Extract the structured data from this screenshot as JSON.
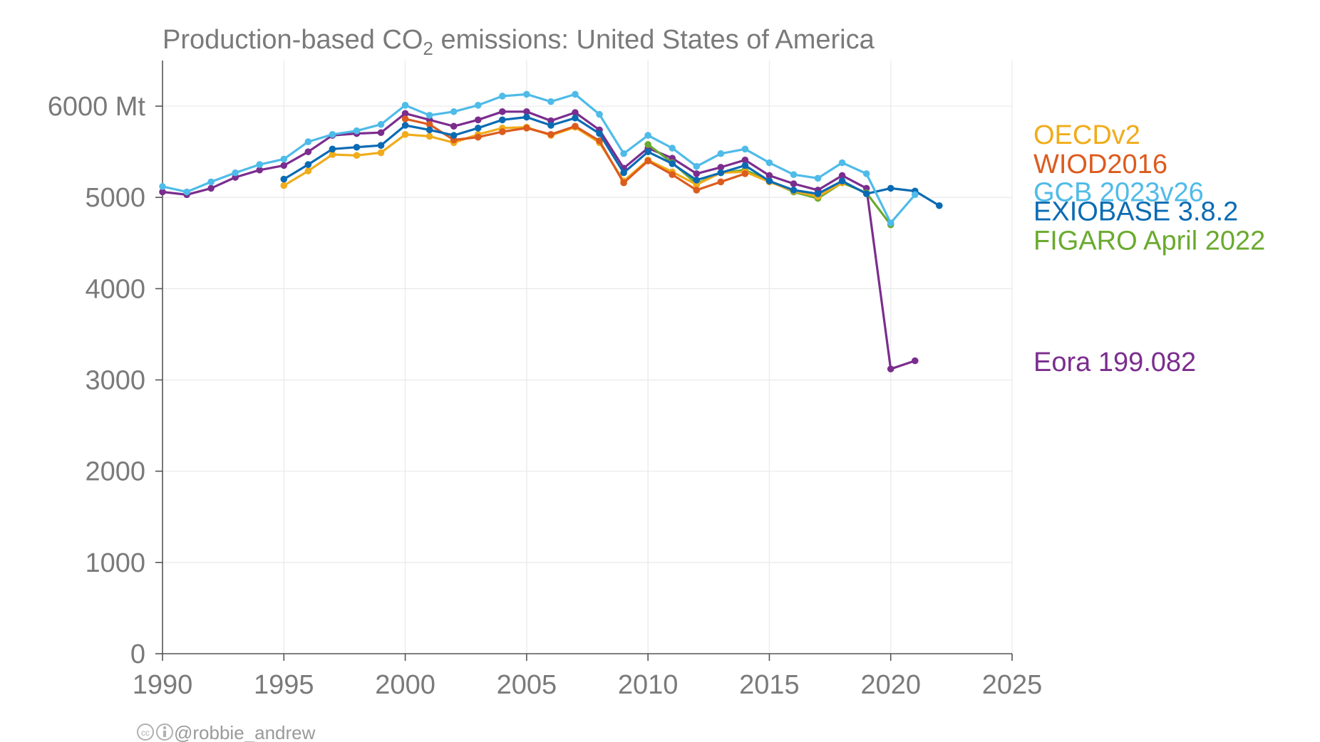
{
  "title": {
    "prefix": "Production-based CO",
    "subscript": "2",
    "suffix": " emissions: United States of America"
  },
  "credit": "@robbie_andrew",
  "chart_data": {
    "type": "line",
    "xlim": [
      1990,
      2025
    ],
    "ylim": [
      0,
      6500
    ],
    "x_ticks": [
      1990,
      1995,
      2000,
      2005,
      2010,
      2015,
      2020,
      2025
    ],
    "y_ticks": [
      {
        "value": 0,
        "label": "0"
      },
      {
        "value": 1000,
        "label": "1000"
      },
      {
        "value": 2000,
        "label": "2000"
      },
      {
        "value": 3000,
        "label": "3000"
      },
      {
        "value": 4000,
        "label": "4000"
      },
      {
        "value": 5000,
        "label": "5000"
      },
      {
        "value": 6000,
        "label": "6000 Mt"
      }
    ],
    "grid": true,
    "legend_position": "right",
    "series": [
      {
        "name": "Eora 199.082",
        "color": "#7b2d8e",
        "legend_value": 3200,
        "x": [
          1990,
          1991,
          1992,
          1993,
          1994,
          1995,
          1996,
          1997,
          1998,
          1999,
          2000,
          2001,
          2002,
          2003,
          2004,
          2005,
          2006,
          2007,
          2008,
          2009,
          2010,
          2011,
          2012,
          2013,
          2014,
          2015,
          2016,
          2017,
          2018,
          2019,
          2020,
          2021
        ],
        "y": [
          5060,
          5030,
          5100,
          5220,
          5300,
          5350,
          5500,
          5680,
          5700,
          5710,
          5920,
          5850,
          5780,
          5850,
          5940,
          5940,
          5840,
          5930,
          5740,
          5320,
          5540,
          5430,
          5260,
          5330,
          5410,
          5240,
          5150,
          5080,
          5240,
          5100,
          3120,
          3210
        ]
      },
      {
        "name": "FIGARO April 2022",
        "color": "#6aaa2e",
        "legend_value": 4530,
        "x": [
          2010,
          2011,
          2012,
          2013,
          2014,
          2015,
          2016,
          2017,
          2018,
          2019,
          2020
        ],
        "y": [
          5580,
          5380,
          5150,
          5270,
          5300,
          5180,
          5060,
          4990,
          5160,
          5050,
          4700
        ]
      },
      {
        "name": "OECDv2",
        "color": "#f0ac1a",
        "legend_value": 5690,
        "x": [
          1995,
          1996,
          1997,
          1998,
          1999,
          2000,
          2001,
          2002,
          2003,
          2004,
          2005,
          2006,
          2007,
          2008,
          2009,
          2010,
          2011,
          2012,
          2013,
          2014,
          2015,
          2016,
          2017,
          2018
        ],
        "y": [
          5130,
          5290,
          5470,
          5460,
          5490,
          5690,
          5670,
          5600,
          5690,
          5760,
          5770,
          5680,
          5770,
          5600,
          5180,
          5410,
          5280,
          5140,
          5270,
          5280,
          5170,
          5070,
          5010,
          5160
        ]
      },
      {
        "name": "WIOD2016",
        "color": "#dc5b1e",
        "legend_value": 5370,
        "x": [
          2000,
          2001,
          2002,
          2003,
          2004,
          2005,
          2006,
          2007,
          2008,
          2009,
          2010,
          2011,
          2012,
          2013,
          2014
        ],
        "y": [
          5860,
          5800,
          5630,
          5660,
          5720,
          5760,
          5690,
          5780,
          5620,
          5160,
          5400,
          5250,
          5080,
          5170,
          5260
        ]
      },
      {
        "name": "EXIOBASE 3.8.2",
        "color": "#0a6bb3",
        "legend_value": 4850,
        "x": [
          1995,
          1996,
          1997,
          1998,
          1999,
          2000,
          2001,
          2002,
          2003,
          2004,
          2005,
          2006,
          2007,
          2008,
          2009,
          2010,
          2011,
          2012,
          2013,
          2014,
          2015,
          2016,
          2017,
          2018,
          2019,
          2020,
          2021,
          2022
        ],
        "y": [
          5200,
          5360,
          5530,
          5550,
          5570,
          5790,
          5740,
          5680,
          5760,
          5850,
          5880,
          5790,
          5870,
          5700,
          5270,
          5500,
          5370,
          5190,
          5270,
          5350,
          5180,
          5080,
          5040,
          5180,
          5040,
          5100,
          5070,
          4910
        ]
      },
      {
        "name": "GCB 2023v26",
        "color": "#4fbbe8",
        "legend_value": 5060,
        "x": [
          1990,
          1991,
          1992,
          1993,
          1994,
          1995,
          1996,
          1997,
          1998,
          1999,
          2000,
          2001,
          2002,
          2003,
          2004,
          2005,
          2006,
          2007,
          2008,
          2009,
          2010,
          2011,
          2012,
          2013,
          2014,
          2015,
          2016,
          2017,
          2018,
          2019,
          2020,
          2021
        ],
        "y": [
          5120,
          5060,
          5170,
          5270,
          5360,
          5420,
          5610,
          5690,
          5730,
          5800,
          6010,
          5900,
          5940,
          6010,
          6110,
          6130,
          6050,
          6130,
          5910,
          5480,
          5680,
          5540,
          5340,
          5480,
          5530,
          5380,
          5250,
          5210,
          5380,
          5260,
          4720,
          5030
        ]
      }
    ]
  }
}
